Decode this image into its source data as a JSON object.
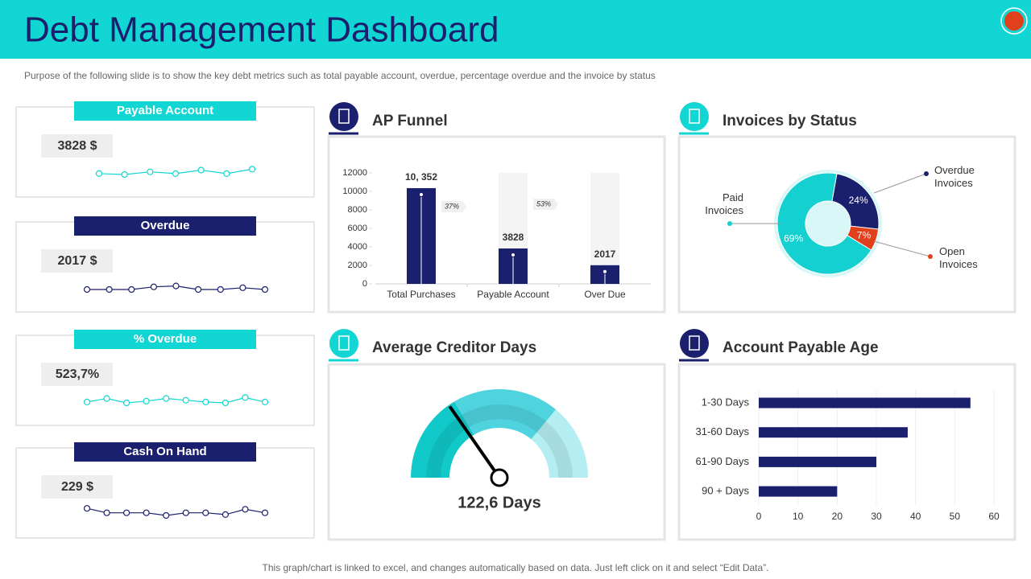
{
  "title": "Debt Management Dashboard",
  "description": "Purpose of the following slide is to show the key debt metrics such as total payable account, overdue, percentage overdue and the invoice by status",
  "footer": "This graph/chart is linked to excel, and changes automatically based on data. Just left click on it and select “Edit Data”.",
  "kpis": [
    {
      "label": "Payable Account",
      "value": "3828 $",
      "color": "#12d6d3",
      "trend": [
        6,
        5,
        8,
        6,
        10,
        6,
        11
      ]
    },
    {
      "label": "Overdue",
      "value": "2017 $",
      "color": "#1a1f6e",
      "trend": [
        0,
        0,
        0,
        3,
        4,
        0,
        0,
        2,
        0
      ]
    },
    {
      "label": "% Overdue",
      "value": "523,7%",
      "color": "#12d6d3",
      "trend": [
        1,
        5,
        0,
        2,
        5,
        3,
        1,
        0,
        6,
        1
      ]
    },
    {
      "label": "Cash On Hand",
      "value": "229 $",
      "color": "#1a1f6e",
      "trend": [
        8,
        3,
        3,
        3,
        0,
        3,
        3,
        1,
        7,
        3
      ]
    }
  ],
  "chart_data": [
    {
      "type": "bar",
      "title": "AP Funnel",
      "categories": [
        "Total Purchases",
        "Payable Account",
        "Over Due"
      ],
      "values": [
        10352,
        3828,
        2017
      ],
      "value_labels": [
        "10, 352",
        "3828",
        "2017"
      ],
      "color": "#1a1f6e",
      "ylim": [
        0,
        12000
      ],
      "yticks": [
        0,
        2000,
        4000,
        6000,
        8000,
        10000,
        12000
      ],
      "annotations": [
        "37%",
        "53%"
      ]
    },
    {
      "type": "pie",
      "title": "Invoices by Status",
      "categories": [
        "Paid Invoices",
        "Overdue Invoices",
        "Open Invoices"
      ],
      "values": [
        69,
        24,
        7
      ],
      "value_labels": [
        "69%",
        "24%",
        "7%"
      ],
      "colors": [
        "#14d0d0",
        "#1a1f6e",
        "#e0401c"
      ]
    },
    {
      "type": "gauge",
      "title": "Average Creditor Days",
      "value": 122.6,
      "value_label": "122,6 Days",
      "ylim": [
        0,
        400
      ]
    },
    {
      "type": "hbar",
      "title": "Account Payable Age",
      "categories": [
        "1-30 Days",
        "31-60 Days",
        "61-90 Days",
        "90 + Days"
      ],
      "values": [
        54,
        38,
        30,
        20
      ],
      "color": "#1a1f6e",
      "xlim": [
        0,
        60
      ],
      "xticks": [
        0,
        10,
        20,
        30,
        40,
        50,
        60
      ],
      "grid": true
    }
  ]
}
